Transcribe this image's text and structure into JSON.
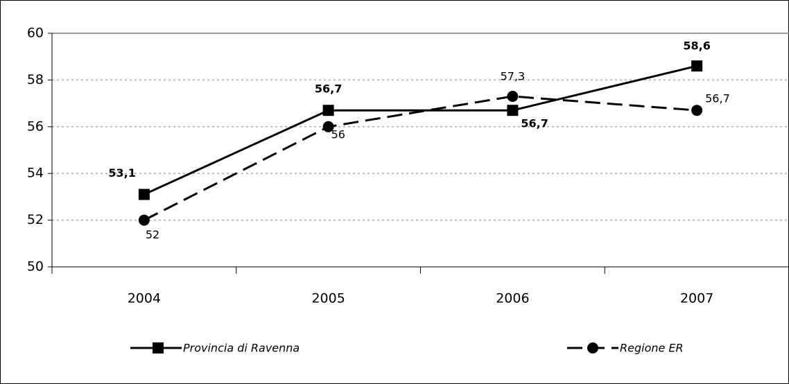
{
  "chart_data": {
    "type": "line",
    "categories": [
      "2004",
      "2005",
      "2006",
      "2007"
    ],
    "series": [
      {
        "name": "Provincia di Ravenna",
        "color": "#000000",
        "values": [
          53.1,
          56.7,
          56.7,
          58.6
        ],
        "value_labels": [
          "53,1",
          "56,7",
          "56,7",
          "58,6"
        ]
      },
      {
        "name": "Regione ER",
        "color": "#000000",
        "values": [
          52,
          56,
          57.3,
          56.7
        ],
        "value_labels": [
          "52",
          "56",
          "57,3",
          "56,7"
        ]
      }
    ],
    "ylim": [
      50,
      60
    ],
    "yticks": [
      50,
      52,
      54,
      56,
      58,
      60
    ],
    "grid": true
  }
}
